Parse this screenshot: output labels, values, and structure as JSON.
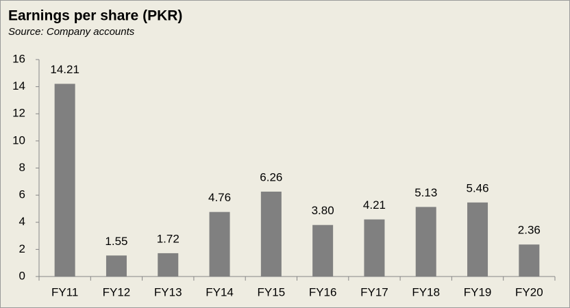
{
  "chart_data": {
    "type": "bar",
    "title": "Earnings per share (PKR)",
    "subtitle": "Source: Company accounts",
    "categories": [
      "FY11",
      "FY12",
      "FY13",
      "FY14",
      "FY15",
      "FY16",
      "FY17",
      "FY18",
      "FY19",
      "FY20"
    ],
    "values": [
      14.21,
      1.55,
      1.72,
      4.76,
      6.26,
      3.8,
      4.21,
      5.13,
      5.46,
      2.36
    ],
    "value_labels": [
      "14.21",
      "1.55",
      "1.72",
      "4.76",
      "6.26",
      "3.80",
      "4.21",
      "5.13",
      "5.46",
      "2.36"
    ],
    "color": "#808080",
    "ylim": [
      0,
      16
    ],
    "yticks": [
      0,
      2,
      4,
      6,
      8,
      10,
      12,
      14,
      16
    ],
    "grid": false
  }
}
